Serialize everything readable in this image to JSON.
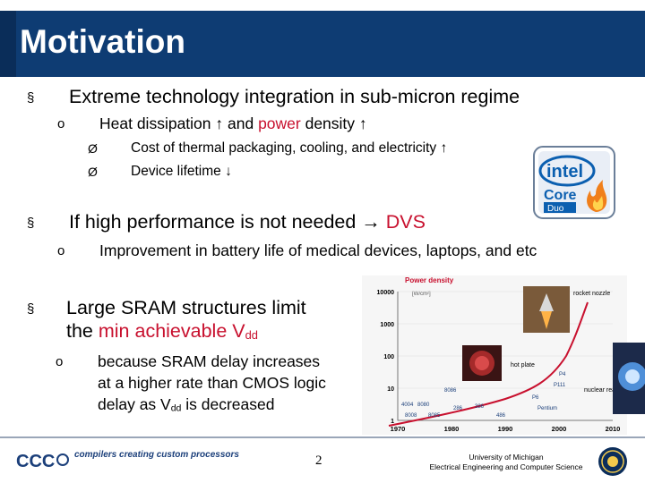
{
  "title": "Motivation",
  "markers": {
    "square": "§",
    "circle": "o",
    "arrow": "Ø"
  },
  "bullets": {
    "b1": "Extreme technology integration in sub-micron regime",
    "b1_sub": {
      "pre": "Heat dissipation ↑ and ",
      "red": "power",
      "post": " density ↑"
    },
    "b1_sub_items": [
      "Cost of thermal packaging, cooling, and electricity ↑",
      "Device lifetime ↓"
    ],
    "b2": {
      "pre": "If high performance is not needed ",
      "arrow": "→",
      "red": "DVS"
    },
    "b2_sub": "Improvement in battery life of medical devices, laptops, and etc",
    "b3": {
      "line1": "Large SRAM structures limit",
      "pre": "the ",
      "red": "min achievable V",
      "red_sub": "dd"
    },
    "b3_sub": {
      "line1": "because SRAM delay increases",
      "line2": "at a higher rate than CMOS logic",
      "line3_pre": "delay as V",
      "line3_sub": "dd",
      "line3_post": " is decreased"
    }
  },
  "intel_logo": {
    "brand": "intel",
    "product": "Core",
    "model": "Duo",
    "colors": {
      "blue": "#0b5fb0",
      "orange": "#f07f1b"
    }
  },
  "chart_data": {
    "type": "scatter",
    "title": "Power density",
    "ylabel": "[W/cm²]",
    "yticks": [
      "10000",
      "1000",
      "100",
      "10",
      "1"
    ],
    "xticks": [
      "1970",
      "1980",
      "1990",
      "2000",
      "2010"
    ],
    "annotations": [
      "rocket nozzle",
      "nuclear reactor",
      "hot plate"
    ],
    "chips": [
      "4004",
      "8008",
      "8080",
      "8085",
      "8086",
      "286",
      "386",
      "486",
      "P6",
      "Pentium",
      "P4",
      "P111"
    ],
    "ylog": true,
    "ylim": [
      1,
      10000
    ],
    "xlim": [
      1970,
      2010
    ]
  },
  "footer": {
    "logo_text": "CCC",
    "tagline": "compilers creating custom processors",
    "page_number": "2",
    "university_line1": "University of Michigan",
    "university_line2": "Electrical Engineering and Computer Science"
  }
}
